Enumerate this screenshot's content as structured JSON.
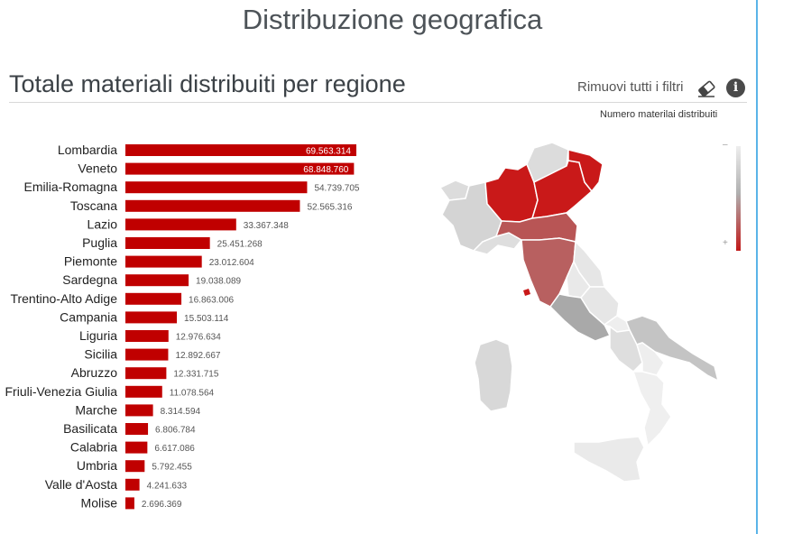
{
  "page": {
    "title": "Distribuzione geografica"
  },
  "panel": {
    "title": "Totale materiali distribuiti per regione",
    "remove_filters": "Rimuovi tutti i filtri",
    "eraser_icon": "eraser-icon",
    "info_icon": "info-icon",
    "info_glyph": "i"
  },
  "map_legend": {
    "title": "Numero materilai distribuiti",
    "min_symbol": "–",
    "max_symbol": "+"
  },
  "colors": {
    "bar": "#c00000",
    "map_high": "#c91919",
    "map_mid": "#b85555",
    "map_low": "#d8d8d8",
    "accent_border": "#5ab4e8"
  },
  "chart_data": {
    "type": "bar",
    "orientation": "horizontal",
    "categories": [
      "Lombardia",
      "Veneto",
      "Emilia-Romagna",
      "Toscana",
      "Lazio",
      "Puglia",
      "Piemonte",
      "Sardegna",
      "Trentino-Alto Adige",
      "Campania",
      "Liguria",
      "Sicilia",
      "Abruzzo",
      "Friuli-Venezia Giulia",
      "Marche",
      "Basilicata",
      "Calabria",
      "Umbria",
      "Valle d'Aosta",
      "Molise"
    ],
    "values": [
      69563314,
      68848760,
      54739705,
      52565316,
      33367348,
      25451268,
      23012604,
      19038089,
      16863006,
      15503114,
      12976634,
      12892667,
      12331715,
      11078564,
      8314594,
      6806784,
      6617086,
      5792455,
      4241633,
      2696369
    ],
    "labels": [
      "69.563.314",
      "68.848.760",
      "54.739.705",
      "52.565.316",
      "33.367.348",
      "25.451.268",
      "23.012.604",
      "19.038.089",
      "16.863.006",
      "15.503.114",
      "12.976.634",
      "12.892.667",
      "12.331.715",
      "11.078.564",
      "8.314.594",
      "6.806.784",
      "6.617.086",
      "5.792.455",
      "4.241.633",
      "2.696.369"
    ],
    "xlim": [
      0,
      69563314
    ]
  }
}
